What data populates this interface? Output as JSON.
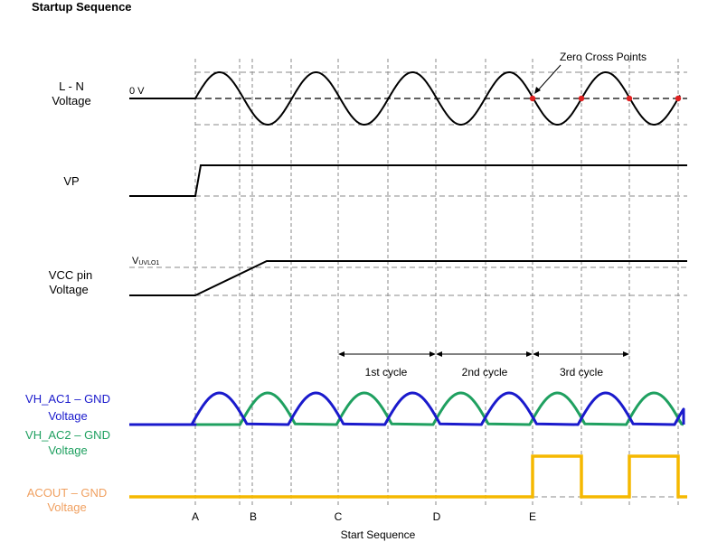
{
  "title": "Startup Sequence",
  "signals": {
    "ln": {
      "label1": "L - N",
      "label2": "Voltage",
      "zero_label": "0 V"
    },
    "vp": {
      "label": "VP"
    },
    "vcc": {
      "label1": "VCC pin",
      "label2": "Voltage",
      "threshold_main": "V",
      "threshold_sub": "UVLO1"
    },
    "vh_ac1": {
      "label1": "VH_AC1 – GND",
      "label2": "Voltage",
      "color": "#1a1acc"
    },
    "vh_ac2": {
      "label1": "VH_AC2 – GND",
      "label2": "Voltage",
      "color": "#1fa060"
    },
    "acout": {
      "label1": "ACOUT – GND",
      "label2": "Voltage",
      "color": "#f5b800",
      "label_color": "#f0a060"
    }
  },
  "annotation": "Zero Cross Points",
  "zero_cross_color": "#e02020",
  "cycles": [
    "1st cycle",
    "2nd cycle",
    "3rd cycle"
  ],
  "markers": [
    "A",
    "B",
    "C",
    "D",
    "E"
  ],
  "xlabel": "Start Sequence"
}
